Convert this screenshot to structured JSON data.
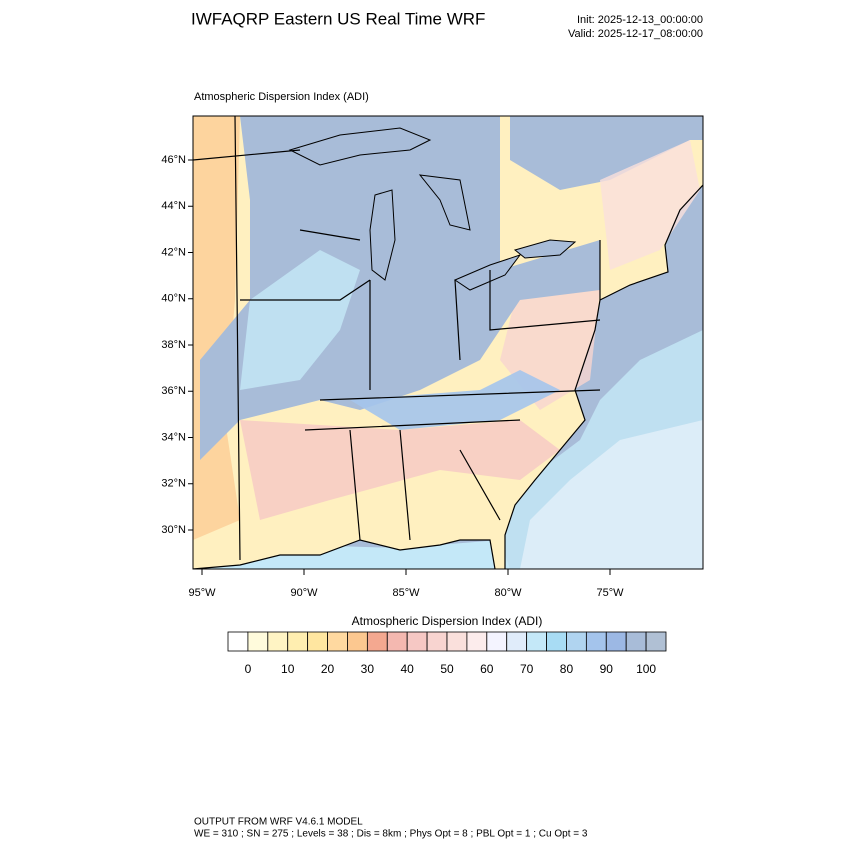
{
  "header": {
    "title": "IWFAQRP Eastern US Real Time WRF",
    "init": "Init: 2025-12-13_00:00:00",
    "valid": "Valid: 2025-12-17_08:00:00"
  },
  "map": {
    "title": "Atmospheric Dispersion Index   (ADI)",
    "lat_labels": [
      "46°N",
      "44°N",
      "42°N",
      "40°N",
      "38°N",
      "36°N",
      "34°N",
      "32°N",
      "30°N"
    ],
    "lon_labels": [
      "95°W",
      "90°W",
      "85°W",
      "80°W",
      "75°W"
    ]
  },
  "colorbar": {
    "title": "Atmospheric Dispersion Index  (ADI)",
    "ticks": [
      0,
      10,
      20,
      30,
      40,
      50,
      60,
      70,
      80,
      90,
      100
    ],
    "colors": [
      "#ffffff",
      "#fffbdc",
      "#fff4c4",
      "#ffeeb0",
      "#ffe6a0",
      "#ffd9a0",
      "#fcc890",
      "#f4a890",
      "#f4b8b0",
      "#f6c8c4",
      "#f8d4d0",
      "#fae0dc",
      "#fcecec",
      "#f4f4ff",
      "#e0ecfa",
      "#c4e8f8",
      "#a8dcf4",
      "#b0d4f0",
      "#a4c4ec",
      "#9cb8e4",
      "#a8bcd8",
      "#b0c0d4"
    ]
  },
  "footer": {
    "line1": "OUTPUT FROM WRF V4.6.1 MODEL",
    "line2": "WE = 310 ; SN = 275 ; Levels = 38 ; Dis = 8km ; Phys Opt = 8 ; PBL Opt = 1 ; Cu Opt = 3"
  }
}
